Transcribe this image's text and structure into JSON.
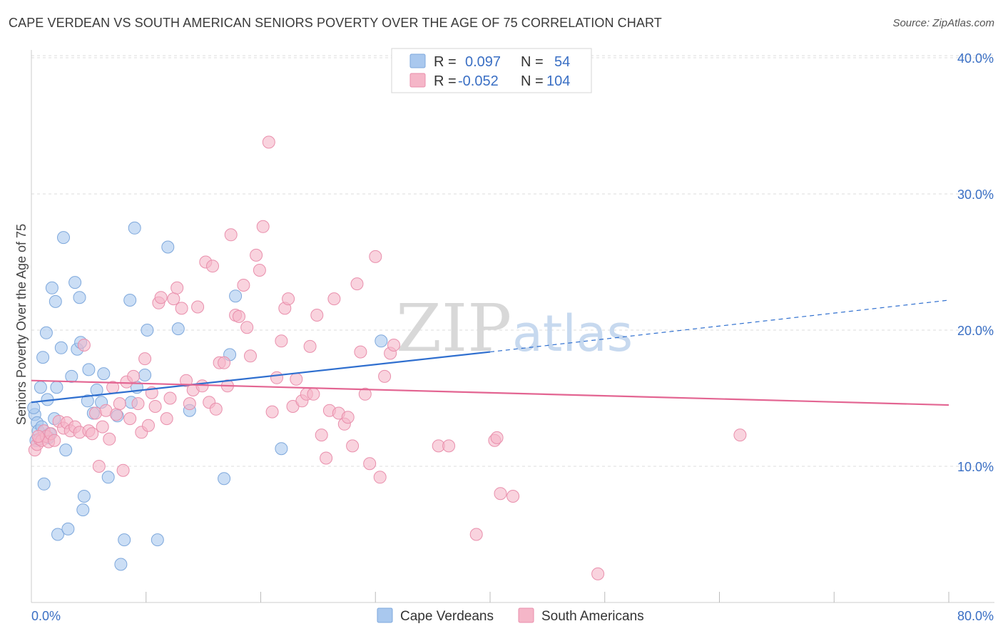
{
  "title": "CAPE VERDEAN VS SOUTH AMERICAN SENIORS POVERTY OVER THE AGE OF 75 CORRELATION CHART",
  "source": "Source: ZipAtlas.com",
  "watermark": {
    "zip": "ZIP",
    "atlas": "atlas"
  },
  "legend": {
    "rows": [
      {
        "r_label": "R =",
        "r_value": "0.097",
        "n_label": "N =",
        "n_value": "54",
        "color": "#a9c8ee"
      },
      {
        "r_label": "R =",
        "r_value": "-0.052",
        "n_label": "N =",
        "n_value": "104",
        "color": "#f5b6c8"
      }
    ]
  },
  "chart_data": {
    "type": "scatter",
    "title": "CAPE VERDEAN VS SOUTH AMERICAN SENIORS POVERTY OVER THE AGE OF 75 CORRELATION CHART",
    "xlabel": "",
    "ylabel": "Seniors Poverty Over the Age of 75",
    "xlim": [
      0,
      80
    ],
    "ylim": [
      0,
      42
    ],
    "x_tick_labels": [
      "0.0%",
      "80.0%"
    ],
    "y_ticks": [
      10,
      20,
      30,
      40
    ],
    "y_tick_labels": [
      "10.0%",
      "20.0%",
      "30.0%",
      "40.0%"
    ],
    "grid": true,
    "legend_position": "top-center",
    "series": [
      {
        "name": "Cape Verdeans",
        "color": "#a9c8ee",
        "stroke": "#7ea8dc",
        "trend": {
          "x0": 0,
          "y0": 14.7,
          "x1": 40,
          "y1": 18.4,
          "dash_to_x": 80,
          "dash_to_y": 22.2,
          "color": "#2f6fcf"
        },
        "points": [
          [
            0.3,
            13.8
          ],
          [
            0.5,
            13.2
          ],
          [
            0.6,
            12.6
          ],
          [
            0.8,
            15.8
          ],
          [
            0.9,
            12.9
          ],
          [
            1.0,
            18.0
          ],
          [
            1.1,
            8.7
          ],
          [
            1.3,
            19.8
          ],
          [
            1.4,
            14.9
          ],
          [
            1.5,
            12.1
          ],
          [
            1.8,
            23.1
          ],
          [
            2.1,
            22.1
          ],
          [
            2.2,
            15.8
          ],
          [
            2.3,
            5.0
          ],
          [
            2.6,
            18.7
          ],
          [
            2.8,
            26.8
          ],
          [
            3.0,
            11.2
          ],
          [
            3.2,
            5.4
          ],
          [
            3.5,
            16.6
          ],
          [
            3.8,
            23.5
          ],
          [
            4.0,
            18.6
          ],
          [
            4.2,
            22.4
          ],
          [
            4.3,
            19.1
          ],
          [
            4.5,
            6.8
          ],
          [
            4.6,
            7.8
          ],
          [
            4.9,
            14.8
          ],
          [
            5.0,
            17.1
          ],
          [
            5.4,
            13.9
          ],
          [
            5.7,
            15.6
          ],
          [
            6.1,
            14.7
          ],
          [
            6.3,
            16.8
          ],
          [
            6.7,
            9.2
          ],
          [
            7.5,
            13.7
          ],
          [
            7.8,
            2.8
          ],
          [
            8.1,
            4.6
          ],
          [
            8.7,
            14.7
          ],
          [
            8.6,
            22.2
          ],
          [
            9.0,
            27.5
          ],
          [
            9.2,
            15.8
          ],
          [
            9.9,
            16.7
          ],
          [
            10.1,
            20.0
          ],
          [
            11.0,
            4.6
          ],
          [
            11.9,
            26.1
          ],
          [
            12.8,
            20.1
          ],
          [
            13.8,
            14.1
          ],
          [
            16.8,
            9.1
          ],
          [
            17.3,
            18.2
          ],
          [
            17.8,
            22.5
          ],
          [
            21.8,
            11.3
          ],
          [
            30.5,
            19.2
          ],
          [
            0.4,
            11.9
          ],
          [
            1.6,
            12.4
          ],
          [
            2.0,
            13.5
          ],
          [
            0.2,
            14.3
          ]
        ]
      },
      {
        "name": "South Americans",
        "color": "#f5b6c8",
        "stroke": "#e98fac",
        "trend": {
          "x0": 0,
          "y0": 16.3,
          "x1": 80,
          "y1": 14.5,
          "color": "#e36592"
        },
        "points": [
          [
            0.3,
            11.2
          ],
          [
            0.5,
            11.6
          ],
          [
            0.7,
            12.0
          ],
          [
            0.9,
            11.9
          ],
          [
            1.1,
            12.6
          ],
          [
            1.3,
            12.2
          ],
          [
            1.5,
            11.8
          ],
          [
            1.7,
            12.4
          ],
          [
            2.0,
            11.9
          ],
          [
            2.4,
            13.3
          ],
          [
            2.8,
            12.8
          ],
          [
            3.1,
            13.2
          ],
          [
            3.4,
            12.6
          ],
          [
            3.8,
            12.9
          ],
          [
            4.2,
            12.5
          ],
          [
            4.6,
            18.9
          ],
          [
            5.0,
            12.6
          ],
          [
            5.3,
            12.4
          ],
          [
            5.6,
            13.9
          ],
          [
            5.9,
            10.0
          ],
          [
            6.2,
            12.9
          ],
          [
            6.5,
            14.1
          ],
          [
            6.8,
            12.0
          ],
          [
            7.1,
            15.8
          ],
          [
            7.4,
            13.8
          ],
          [
            7.7,
            14.6
          ],
          [
            8.0,
            9.7
          ],
          [
            8.3,
            16.2
          ],
          [
            8.6,
            13.5
          ],
          [
            8.9,
            16.6
          ],
          [
            9.3,
            14.6
          ],
          [
            9.6,
            12.5
          ],
          [
            9.9,
            17.9
          ],
          [
            10.2,
            13.0
          ],
          [
            10.5,
            15.4
          ],
          [
            10.8,
            14.4
          ],
          [
            11.1,
            22.0
          ],
          [
            11.3,
            22.4
          ],
          [
            11.8,
            13.5
          ],
          [
            12.1,
            15.0
          ],
          [
            12.4,
            22.3
          ],
          [
            12.7,
            23.1
          ],
          [
            13.1,
            21.6
          ],
          [
            13.5,
            16.3
          ],
          [
            13.8,
            14.6
          ],
          [
            14.1,
            15.6
          ],
          [
            14.5,
            21.7
          ],
          [
            14.9,
            15.9
          ],
          [
            15.2,
            25.0
          ],
          [
            15.5,
            14.7
          ],
          [
            15.8,
            24.7
          ],
          [
            16.1,
            14.2
          ],
          [
            16.4,
            17.6
          ],
          [
            16.8,
            17.6
          ],
          [
            17.1,
            15.9
          ],
          [
            17.4,
            27.0
          ],
          [
            17.8,
            21.1
          ],
          [
            18.1,
            21.0
          ],
          [
            18.5,
            23.3
          ],
          [
            18.8,
            20.2
          ],
          [
            19.1,
            18.1
          ],
          [
            19.6,
            25.5
          ],
          [
            19.9,
            24.4
          ],
          [
            20.2,
            27.6
          ],
          [
            20.7,
            33.8
          ],
          [
            21.0,
            14.0
          ],
          [
            21.4,
            16.5
          ],
          [
            21.8,
            19.2
          ],
          [
            22.1,
            21.6
          ],
          [
            22.4,
            22.3
          ],
          [
            22.8,
            14.4
          ],
          [
            23.1,
            16.4
          ],
          [
            23.6,
            14.8
          ],
          [
            24.0,
            15.3
          ],
          [
            24.3,
            18.8
          ],
          [
            24.6,
            15.3
          ],
          [
            24.9,
            21.1
          ],
          [
            25.3,
            12.3
          ],
          [
            25.7,
            10.6
          ],
          [
            26.0,
            14.1
          ],
          [
            26.4,
            22.3
          ],
          [
            26.8,
            13.9
          ],
          [
            27.3,
            13.1
          ],
          [
            27.6,
            13.6
          ],
          [
            28.0,
            11.5
          ],
          [
            28.4,
            23.4
          ],
          [
            28.7,
            18.4
          ],
          [
            29.1,
            15.3
          ],
          [
            29.5,
            10.2
          ],
          [
            30.0,
            25.4
          ],
          [
            30.4,
            9.2
          ],
          [
            30.8,
            16.6
          ],
          [
            31.3,
            18.3
          ],
          [
            31.6,
            18.9
          ],
          [
            35.5,
            11.5
          ],
          [
            36.4,
            11.5
          ],
          [
            40.4,
            11.9
          ],
          [
            40.6,
            12.1
          ],
          [
            40.9,
            8.0
          ],
          [
            42.0,
            7.8
          ],
          [
            38.8,
            5.0
          ],
          [
            49.4,
            2.1
          ],
          [
            61.8,
            12.3
          ],
          [
            0.6,
            12.2
          ]
        ]
      }
    ]
  },
  "bottom_legend": [
    {
      "label": "Cape Verdeans",
      "color": "#a9c8ee"
    },
    {
      "label": "South Americans",
      "color": "#f5b6c8"
    }
  ]
}
